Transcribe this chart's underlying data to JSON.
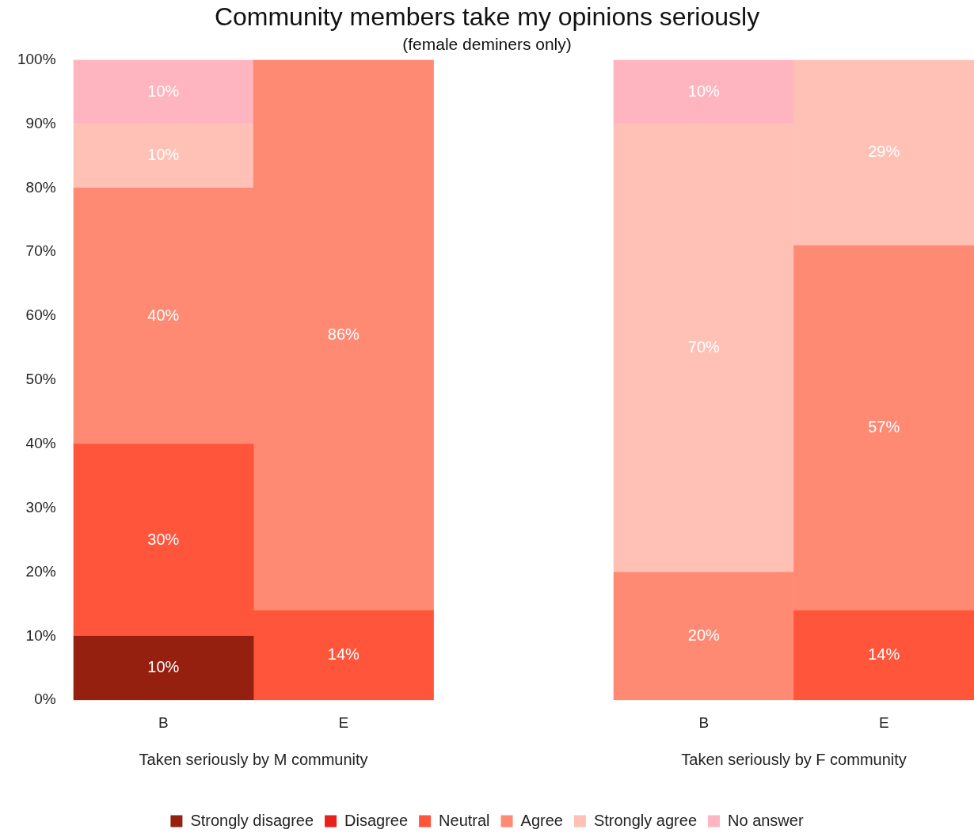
{
  "chart_data": {
    "type": "bar",
    "stacked": true,
    "title": "Community members take my opinions seriously",
    "subtitle": "(female deminers only)",
    "categories": [
      "B",
      "E",
      null,
      "B",
      "E"
    ],
    "annotations": [
      "Taken seriously by M community",
      "Taken seriously by F community"
    ],
    "ylim": [
      0,
      100
    ],
    "yticks": [
      {
        "value": 0,
        "label": "0%"
      },
      {
        "value": 10,
        "label": "10%"
      },
      {
        "value": 20,
        "label": "20%"
      },
      {
        "value": 30,
        "label": "30%"
      },
      {
        "value": 40,
        "label": "40%"
      },
      {
        "value": 50,
        "label": "50%"
      },
      {
        "value": 60,
        "label": "60%"
      },
      {
        "value": 70,
        "label": "70%"
      },
      {
        "value": 80,
        "label": "80%"
      },
      {
        "value": 90,
        "label": "90%"
      },
      {
        "value": 100,
        "label": "100%"
      }
    ],
    "grid": false,
    "legend": "bottom",
    "series": [
      {
        "name": "Strongly disagree",
        "color": "#962010",
        "values": [
          10,
          null,
          null,
          null,
          null
        ],
        "value_labels": [
          "10%",
          null,
          null,
          null,
          null
        ]
      },
      {
        "name": "Disagree",
        "color": "#e8211b",
        "values": [
          null,
          null,
          null,
          null,
          null
        ]
      },
      {
        "name": "Neutral",
        "color": "#ff553a",
        "values": [
          30,
          14,
          null,
          null,
          14
        ],
        "value_labels": [
          "30%",
          "14%",
          null,
          null,
          "14%"
        ]
      },
      {
        "name": "Agree",
        "color": "#ff8a74",
        "values": [
          40,
          86,
          null,
          20,
          57
        ],
        "value_labels": [
          "40%",
          "86%",
          null,
          "20%",
          "57%"
        ]
      },
      {
        "name": "Strongly agree",
        "color": "#ffc1b6",
        "values": [
          10,
          null,
          null,
          70,
          29
        ],
        "value_labels": [
          "10%",
          null,
          null,
          "70%",
          "29%"
        ]
      },
      {
        "name": "No answer",
        "color": "#ffb5bf",
        "values": [
          10,
          null,
          null,
          10,
          null
        ],
        "value_labels": [
          "10%",
          null,
          null,
          "10%",
          null
        ]
      }
    ]
  }
}
